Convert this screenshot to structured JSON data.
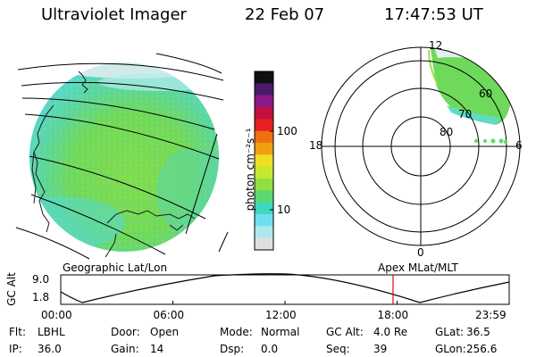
{
  "header": {
    "instrument": "Ultraviolet Imager",
    "date": "22 Feb 07",
    "time": "17:47:53 UT"
  },
  "colorbar": {
    "unit_label": "photon cm⁻²s⁻¹",
    "ticks": [
      "100",
      "10"
    ],
    "colors": [
      "#101010",
      "#4a1a6a",
      "#8a1a8a",
      "#c01040",
      "#e82020",
      "#f07010",
      "#f0a010",
      "#f0e020",
      "#c8e830",
      "#90e040",
      "#5cd870",
      "#40d8c0",
      "#70e0f0",
      "#b0e8f0",
      "#e0e0e0"
    ]
  },
  "polar_plot": {
    "mlt_labels": [
      "12",
      "18",
      "6",
      "0"
    ],
    "lat_labels": [
      "60",
      "70",
      "80"
    ]
  },
  "projections": {
    "left": "Geographic Lat/Lon",
    "right": "Apex MLat/MLT"
  },
  "altitude_plot": {
    "ylabel": "GC Alt",
    "yticks": [
      "9.0",
      "1.8"
    ],
    "xticks": [
      "00:00",
      "06:00",
      "12:00",
      "18:00",
      "23:59"
    ],
    "current_time_fraction": 0.741,
    "marker_color": "#d01010"
  },
  "params": [
    {
      "key": "Flt:",
      "value": "LBHL"
    },
    {
      "key": "IP:",
      "value": "36.0"
    },
    {
      "key": "Door:",
      "value": "Open"
    },
    {
      "key": "Gain:",
      "value": "14"
    },
    {
      "key": "Mode:",
      "value": "Normal"
    },
    {
      "key": "Dsp:",
      "value": "0.0"
    },
    {
      "key": "GC Alt:",
      "value": "4.0 Re"
    },
    {
      "key": "Seq:",
      "value": "39"
    },
    {
      "key": "GLat:",
      "value": "36.5"
    },
    {
      "key": "GLon:",
      "value": "256.6"
    }
  ]
}
